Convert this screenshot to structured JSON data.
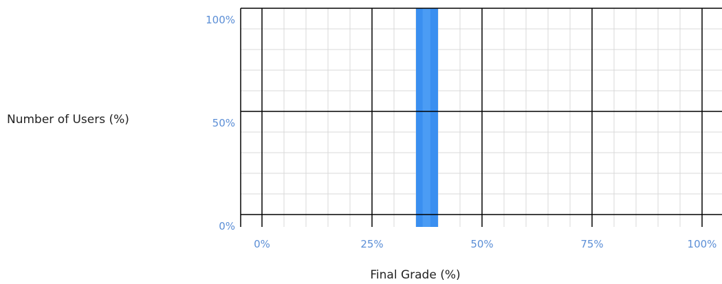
{
  "chart_data": {
    "type": "bar",
    "title": "",
    "xlabel": "Final Grade (%)",
    "ylabel": "Number of Users (%)",
    "xlim": [
      0,
      100
    ],
    "ylim": [
      0,
      100
    ],
    "x_ticks": [
      0,
      25,
      50,
      75,
      100
    ],
    "x_tick_labels": [
      "0%",
      "25%",
      "50%",
      "75%",
      "100%"
    ],
    "y_ticks": [
      0,
      50,
      100
    ],
    "y_tick_labels": [
      "0%",
      "50%",
      "100%"
    ],
    "bars": [
      {
        "x_start": 35,
        "x_end": 40,
        "value": 100
      }
    ],
    "grid": true,
    "colors": {
      "bar": "#3a8ff0",
      "bar_highlight": "#5aa7f7",
      "tick_label": "#5b8ed6",
      "major_grid": "#000000",
      "minor_grid": "#d9d9d9"
    }
  }
}
